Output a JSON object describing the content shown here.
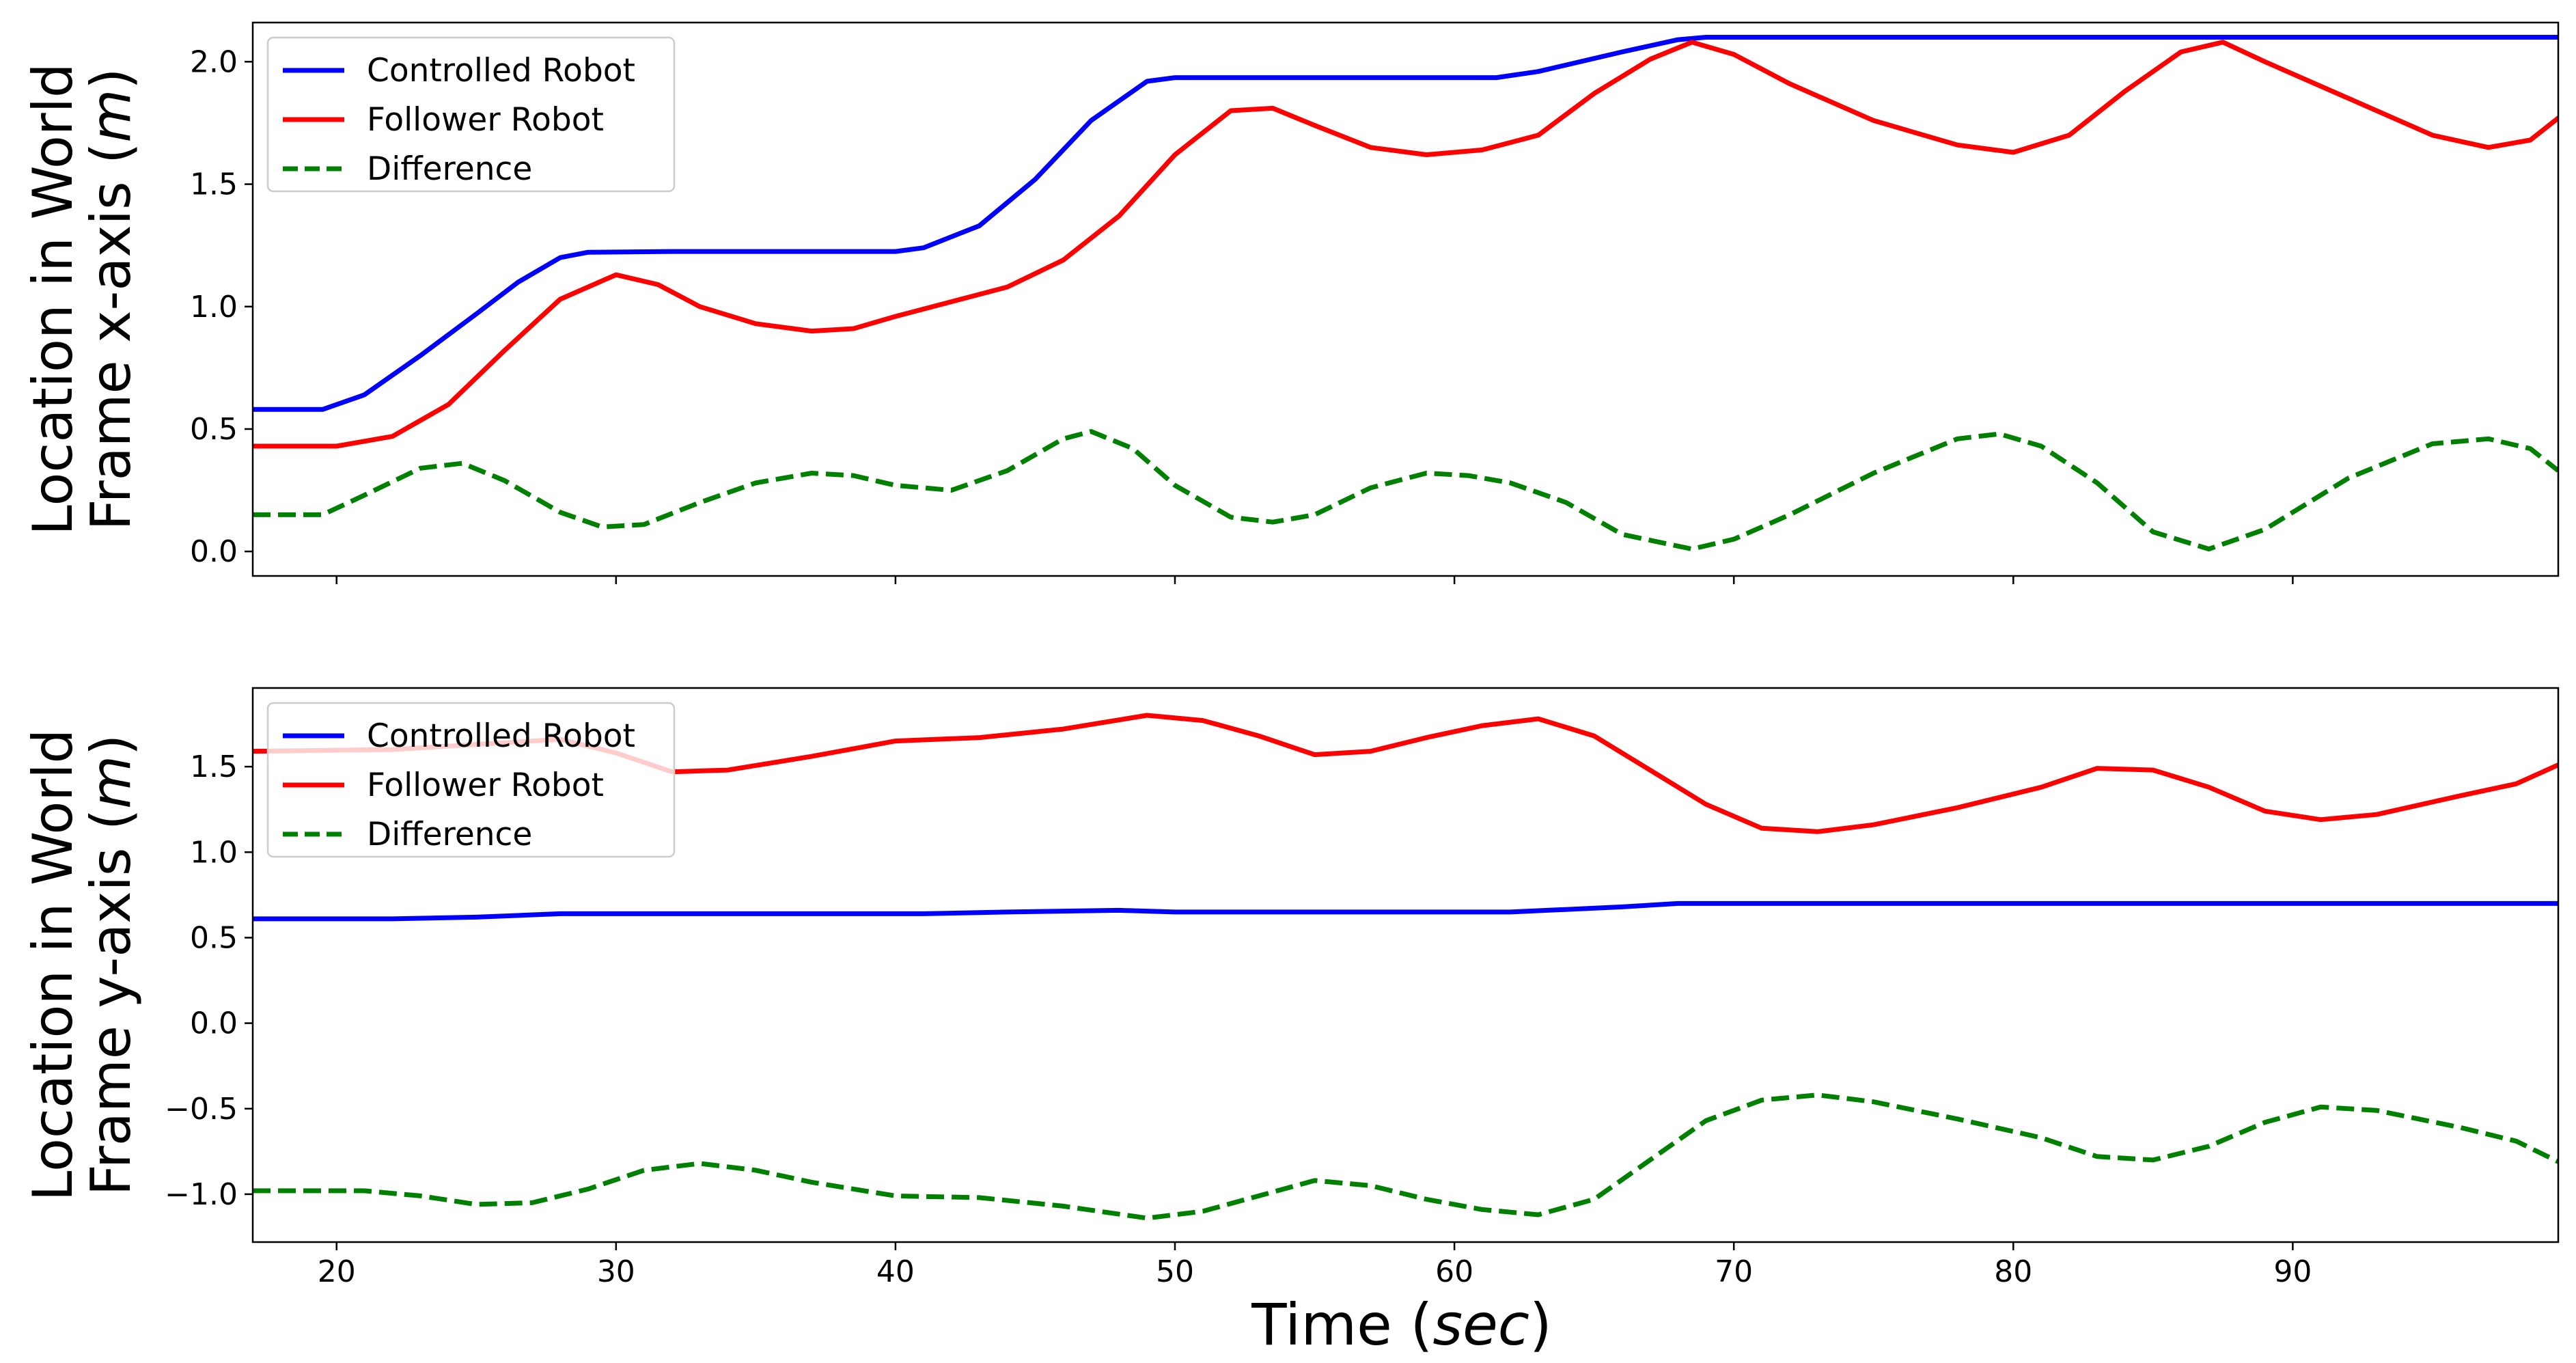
{
  "chart_data": {
    "type": "line",
    "xlabel": "Time",
    "xlabel_unit": "sec",
    "xlim": [
      17,
      99.5
    ],
    "xticks": [
      20,
      30,
      40,
      50,
      60,
      70,
      80,
      90
    ],
    "panels": [
      {
        "id": "x-axis-panel",
        "ylabel_line1": "Location in World",
        "ylabel_line2": "Frame x-axis",
        "ylabel_unit": "m",
        "ylim": [
          -0.1,
          2.16
        ],
        "yticks": [
          "0.0",
          "0.5",
          "1.0",
          "1.5",
          "2.0"
        ],
        "ytick_values": [
          0.0,
          0.5,
          1.0,
          1.5,
          2.0
        ],
        "legend_position": "upper-left",
        "series": [
          {
            "name": "Controlled Robot",
            "color": "#0000ff",
            "style": "solid",
            "points": [
              [
                17,
                0.58
              ],
              [
                19.5,
                0.58
              ],
              [
                21,
                0.64
              ],
              [
                23,
                0.8
              ],
              [
                25,
                0.97
              ],
              [
                26.5,
                1.1
              ],
              [
                28,
                1.2
              ],
              [
                29,
                1.222
              ],
              [
                32,
                1.225
              ],
              [
                36,
                1.225
              ],
              [
                40,
                1.225
              ],
              [
                41,
                1.24
              ],
              [
                43,
                1.33
              ],
              [
                45,
                1.52
              ],
              [
                47,
                1.76
              ],
              [
                49,
                1.92
              ],
              [
                50,
                1.935
              ],
              [
                55,
                1.935
              ],
              [
                61.5,
                1.935
              ],
              [
                63,
                1.96
              ],
              [
                66,
                2.04
              ],
              [
                68,
                2.09
              ],
              [
                69,
                2.1
              ],
              [
                75,
                2.1
              ],
              [
                85,
                2.1
              ],
              [
                99.5,
                2.1
              ]
            ]
          },
          {
            "name": "Follower Robot",
            "color": "#ff0000",
            "style": "solid",
            "points": [
              [
                17,
                0.43
              ],
              [
                20,
                0.43
              ],
              [
                22,
                0.47
              ],
              [
                24,
                0.6
              ],
              [
                26,
                0.82
              ],
              [
                28,
                1.03
              ],
              [
                30,
                1.13
              ],
              [
                31.5,
                1.09
              ],
              [
                33,
                1.0
              ],
              [
                35,
                0.93
              ],
              [
                37,
                0.9
              ],
              [
                38.5,
                0.91
              ],
              [
                40,
                0.96
              ],
              [
                42,
                1.02
              ],
              [
                44,
                1.08
              ],
              [
                46,
                1.19
              ],
              [
                48,
                1.37
              ],
              [
                50,
                1.62
              ],
              [
                52,
                1.8
              ],
              [
                53.5,
                1.81
              ],
              [
                55,
                1.74
              ],
              [
                57,
                1.65
              ],
              [
                59,
                1.62
              ],
              [
                61,
                1.64
              ],
              [
                63,
                1.7
              ],
              [
                65,
                1.87
              ],
              [
                67,
                2.01
              ],
              [
                68.5,
                2.08
              ],
              [
                70,
                2.03
              ],
              [
                72,
                1.91
              ],
              [
                75,
                1.76
              ],
              [
                78,
                1.66
              ],
              [
                80,
                1.63
              ],
              [
                82,
                1.7
              ],
              [
                84,
                1.88
              ],
              [
                86,
                2.04
              ],
              [
                87.5,
                2.08
              ],
              [
                89,
                2.0
              ],
              [
                92,
                1.85
              ],
              [
                95,
                1.7
              ],
              [
                97,
                1.65
              ],
              [
                98.5,
                1.68
              ],
              [
                99.5,
                1.77
              ]
            ]
          },
          {
            "name": "Difference",
            "color": "#008000",
            "style": "dashed",
            "points": [
              [
                17,
                0.15
              ],
              [
                19.5,
                0.15
              ],
              [
                21,
                0.23
              ],
              [
                23,
                0.34
              ],
              [
                24.5,
                0.36
              ],
              [
                26,
                0.29
              ],
              [
                28,
                0.16
              ],
              [
                29.5,
                0.1
              ],
              [
                31,
                0.11
              ],
              [
                33,
                0.2
              ],
              [
                35,
                0.28
              ],
              [
                37,
                0.32
              ],
              [
                38.5,
                0.31
              ],
              [
                40,
                0.27
              ],
              [
                42,
                0.25
              ],
              [
                44,
                0.33
              ],
              [
                46,
                0.46
              ],
              [
                47,
                0.49
              ],
              [
                48.5,
                0.42
              ],
              [
                50,
                0.27
              ],
              [
                52,
                0.14
              ],
              [
                53.5,
                0.12
              ],
              [
                55,
                0.15
              ],
              [
                57,
                0.26
              ],
              [
                59,
                0.32
              ],
              [
                60.5,
                0.31
              ],
              [
                62,
                0.28
              ],
              [
                64,
                0.2
              ],
              [
                66,
                0.07
              ],
              [
                68.5,
                0.01
              ],
              [
                70,
                0.05
              ],
              [
                72,
                0.15
              ],
              [
                75,
                0.32
              ],
              [
                78,
                0.46
              ],
              [
                79.5,
                0.48
              ],
              [
                81,
                0.43
              ],
              [
                83,
                0.28
              ],
              [
                85,
                0.08
              ],
              [
                87,
                0.01
              ],
              [
                89,
                0.09
              ],
              [
                92,
                0.3
              ],
              [
                95,
                0.44
              ],
              [
                97,
                0.46
              ],
              [
                98.5,
                0.42
              ],
              [
                99.5,
                0.33
              ]
            ]
          }
        ]
      },
      {
        "id": "y-axis-panel",
        "ylabel_line1": "Location in World",
        "ylabel_line2": "Frame y-axis",
        "ylabel_unit": "m",
        "ylim": [
          -1.28,
          1.96
        ],
        "yticks": [
          "−1.0",
          "−0.5",
          "0.0",
          "0.5",
          "1.0",
          "1.5"
        ],
        "ytick_values": [
          -1.0,
          -0.5,
          0.0,
          0.5,
          1.0,
          1.5
        ],
        "legend_position": "upper-left",
        "series": [
          {
            "name": "Controlled Robot",
            "color": "#0000ff",
            "style": "solid",
            "points": [
              [
                17,
                0.61
              ],
              [
                20,
                0.61
              ],
              [
                22,
                0.61
              ],
              [
                25,
                0.62
              ],
              [
                28,
                0.64
              ],
              [
                35,
                0.64
              ],
              [
                41,
                0.64
              ],
              [
                44,
                0.65
              ],
              [
                48,
                0.66
              ],
              [
                50,
                0.65
              ],
              [
                55,
                0.65
              ],
              [
                62,
                0.65
              ],
              [
                66,
                0.68
              ],
              [
                68,
                0.7
              ],
              [
                75,
                0.7
              ],
              [
                85,
                0.7
              ],
              [
                99.5,
                0.7
              ]
            ]
          },
          {
            "name": "Follower Robot",
            "color": "#ff0000",
            "style": "solid",
            "points": [
              [
                17,
                1.59
              ],
              [
                22,
                1.6
              ],
              [
                26,
                1.64
              ],
              [
                28,
                1.66
              ],
              [
                30,
                1.58
              ],
              [
                32,
                1.47
              ],
              [
                34,
                1.48
              ],
              [
                37,
                1.56
              ],
              [
                40,
                1.65
              ],
              [
                43,
                1.67
              ],
              [
                46,
                1.72
              ],
              [
                49,
                1.8
              ],
              [
                51,
                1.77
              ],
              [
                53,
                1.68
              ],
              [
                55,
                1.57
              ],
              [
                57,
                1.59
              ],
              [
                59,
                1.67
              ],
              [
                61,
                1.74
              ],
              [
                63,
                1.78
              ],
              [
                65,
                1.68
              ],
              [
                67,
                1.48
              ],
              [
                69,
                1.28
              ],
              [
                71,
                1.14
              ],
              [
                73,
                1.12
              ],
              [
                75,
                1.16
              ],
              [
                78,
                1.26
              ],
              [
                81,
                1.38
              ],
              [
                83,
                1.49
              ],
              [
                85,
                1.48
              ],
              [
                87,
                1.38
              ],
              [
                89,
                1.24
              ],
              [
                91,
                1.19
              ],
              [
                93,
                1.22
              ],
              [
                96,
                1.33
              ],
              [
                98,
                1.4
              ],
              [
                99.5,
                1.51
              ]
            ]
          },
          {
            "name": "Difference",
            "color": "#008000",
            "style": "dashed",
            "points": [
              [
                17,
                -0.98
              ],
              [
                21,
                -0.98
              ],
              [
                23,
                -1.01
              ],
              [
                25,
                -1.06
              ],
              [
                27,
                -1.05
              ],
              [
                29,
                -0.97
              ],
              [
                31,
                -0.86
              ],
              [
                33,
                -0.82
              ],
              [
                35,
                -0.86
              ],
              [
                37,
                -0.93
              ],
              [
                40,
                -1.01
              ],
              [
                43,
                -1.02
              ],
              [
                46,
                -1.07
              ],
              [
                49,
                -1.14
              ],
              [
                51,
                -1.1
              ],
              [
                53,
                -1.01
              ],
              [
                55,
                -0.92
              ],
              [
                57,
                -0.95
              ],
              [
                59,
                -1.03
              ],
              [
                61,
                -1.09
              ],
              [
                63,
                -1.12
              ],
              [
                65,
                -1.03
              ],
              [
                67,
                -0.8
              ],
              [
                69,
                -0.57
              ],
              [
                71,
                -0.45
              ],
              [
                73,
                -0.42
              ],
              [
                75,
                -0.46
              ],
              [
                78,
                -0.56
              ],
              [
                81,
                -0.67
              ],
              [
                83,
                -0.78
              ],
              [
                85,
                -0.8
              ],
              [
                87,
                -0.72
              ],
              [
                89,
                -0.58
              ],
              [
                91,
                -0.49
              ],
              [
                93,
                -0.51
              ],
              [
                96,
                -0.61
              ],
              [
                98,
                -0.69
              ],
              [
                99.5,
                -0.81
              ]
            ]
          }
        ]
      }
    ]
  }
}
